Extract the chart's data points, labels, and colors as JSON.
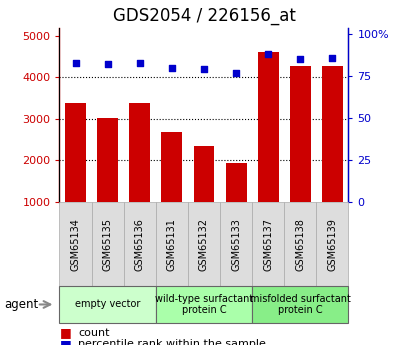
{
  "title": "GDS2054 / 226156_at",
  "samples": [
    "GSM65134",
    "GSM65135",
    "GSM65136",
    "GSM65131",
    "GSM65132",
    "GSM65133",
    "GSM65137",
    "GSM65138",
    "GSM65139"
  ],
  "counts": [
    3380,
    3010,
    3380,
    2680,
    2340,
    1930,
    4620,
    4280,
    4280
  ],
  "percentile": [
    83,
    82,
    83,
    80,
    79,
    77,
    88,
    85,
    86
  ],
  "groups": [
    {
      "label": "empty vector",
      "start": 0,
      "end": 3,
      "color": "#ccffcc"
    },
    {
      "label": "wild-type surfactant\nprotein C",
      "start": 3,
      "end": 6,
      "color": "#aaffaa"
    },
    {
      "label": "misfolded surfactant\nprotein C",
      "start": 6,
      "end": 9,
      "color": "#88ee88"
    }
  ],
  "left_yticks": [
    1000,
    2000,
    3000,
    4000,
    5000
  ],
  "right_yticks": [
    0,
    25,
    50,
    75,
    100
  ],
  "left_ylim": [
    1000,
    5200
  ],
  "right_ylim": [
    0,
    104
  ],
  "bar_color": "#cc0000",
  "dot_color": "#0000cc",
  "title_fontsize": 12,
  "tick_label_fontsize": 8,
  "legend_fontsize": 8,
  "bar_width": 0.65
}
